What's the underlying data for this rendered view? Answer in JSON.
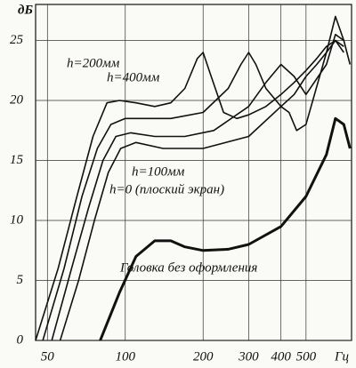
{
  "chart_data": {
    "type": "line",
    "y_label": "дБ",
    "x_label": "Гц",
    "log_x": true,
    "grid": true,
    "color": "#111111",
    "xlim": [
      45,
      750
    ],
    "ylim": [
      0,
      28
    ],
    "xticks": [
      50,
      100,
      200,
      300,
      400,
      500
    ],
    "yticks": [
      0,
      5,
      10,
      15,
      20,
      25
    ],
    "series": [
      {
        "name": "h=200мм",
        "color": "#111111",
        "x": [
          45,
          55,
          65,
          75,
          85,
          95,
          110,
          130,
          150,
          170,
          190,
          200,
          215,
          240,
          270,
          300,
          350,
          400,
          450,
          500,
          550,
          600,
          650,
          700
        ],
        "values": [
          0,
          6,
          12,
          17,
          19.8,
          20,
          19.8,
          19.5,
          19.8,
          21,
          23.5,
          24,
          22,
          19,
          18.5,
          18.8,
          19.5,
          20.5,
          21.5,
          22.5,
          23.5,
          24.5,
          25,
          24.5
        ]
      },
      {
        "name": "h=400мм",
        "color": "#111111",
        "x": [
          48,
          58,
          68,
          78,
          88,
          100,
          120,
          150,
          200,
          250,
          280,
          300,
          320,
          350,
          400,
          450,
          500,
          550,
          600,
          650,
          700
        ],
        "values": [
          0,
          6,
          12,
          16,
          18,
          18.5,
          18.5,
          18.5,
          19,
          21,
          23,
          24,
          23,
          21,
          19.5,
          20.5,
          22,
          23,
          24,
          25,
          24
        ]
      },
      {
        "name": "h=100мм",
        "color": "#111111",
        "x": [
          52,
          62,
          72,
          82,
          92,
          105,
          130,
          170,
          220,
          300,
          350,
          400,
          450,
          500,
          600,
          650,
          700
        ],
        "values": [
          0,
          6,
          11,
          15,
          17,
          17.3,
          17,
          17,
          17.5,
          19.5,
          21.5,
          23,
          22,
          20.5,
          23,
          25.5,
          25
        ]
      },
      {
        "name": "h=0 (плоский экран)",
        "color": "#111111",
        "x": [
          56,
          66,
          76,
          86,
          96,
          110,
          140,
          200,
          300,
          400,
          430,
          460,
          500,
          600,
          650,
          700,
          740
        ],
        "values": [
          0,
          5,
          10,
          14,
          16,
          16.5,
          16,
          16,
          17,
          19.5,
          19,
          17.5,
          18,
          24,
          27,
          25,
          23
        ]
      },
      {
        "name": "Головка без оформления",
        "color": "#111111",
        "x": [
          80,
          95,
          110,
          130,
          150,
          170,
          200,
          250,
          300,
          400,
          500,
          600,
          650,
          700,
          740
        ],
        "values": [
          0,
          4,
          7,
          8.3,
          8.3,
          7.8,
          7.5,
          7.6,
          8,
          9.5,
          12,
          15.5,
          18.5,
          18,
          16
        ]
      }
    ]
  }
}
